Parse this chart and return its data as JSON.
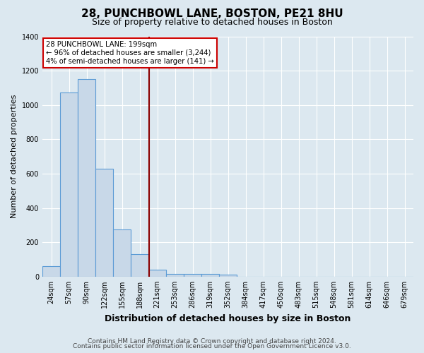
{
  "title1": "28, PUNCHBOWL LANE, BOSTON, PE21 8HU",
  "title2": "Size of property relative to detached houses in Boston",
  "xlabel": "Distribution of detached houses by size in Boston",
  "ylabel": "Number of detached properties",
  "footnote1": "Contains HM Land Registry data © Crown copyright and database right 2024.",
  "footnote2": "Contains public sector information licensed under the Open Government Licence v3.0.",
  "annotation_line1": "28 PUNCHBOWL LANE: 199sqm",
  "annotation_line2": "← 96% of detached houses are smaller (3,244)",
  "annotation_line3": "4% of semi-detached houses are larger (141) →",
  "bar_labels": [
    "24sqm",
    "57sqm",
    "90sqm",
    "122sqm",
    "155sqm",
    "188sqm",
    "221sqm",
    "253sqm",
    "286sqm",
    "319sqm",
    "352sqm",
    "384sqm",
    "417sqm",
    "450sqm",
    "483sqm",
    "515sqm",
    "548sqm",
    "581sqm",
    "614sqm",
    "646sqm",
    "679sqm"
  ],
  "bar_values": [
    60,
    1075,
    1150,
    630,
    275,
    130,
    40,
    15,
    15,
    15,
    10,
    0,
    0,
    0,
    0,
    0,
    0,
    0,
    0,
    0,
    0
  ],
  "bar_color": "#c8d8e8",
  "bar_edge_color": "#5b9bd5",
  "vline_x": 5.52,
  "vline_color": "#8b0000",
  "ylim": [
    0,
    1400
  ],
  "yticks": [
    0,
    200,
    400,
    600,
    800,
    1000,
    1200,
    1400
  ],
  "background_color": "#dce8f0",
  "plot_bg_color": "#dce8f0",
  "grid_color": "#ffffff",
  "annotation_box_color": "#ffffff",
  "annotation_box_edge_color": "#cc0000",
  "title1_fontsize": 11,
  "title2_fontsize": 9,
  "xlabel_fontsize": 9,
  "ylabel_fontsize": 8,
  "tick_fontsize": 7,
  "footnote_fontsize": 6.5
}
